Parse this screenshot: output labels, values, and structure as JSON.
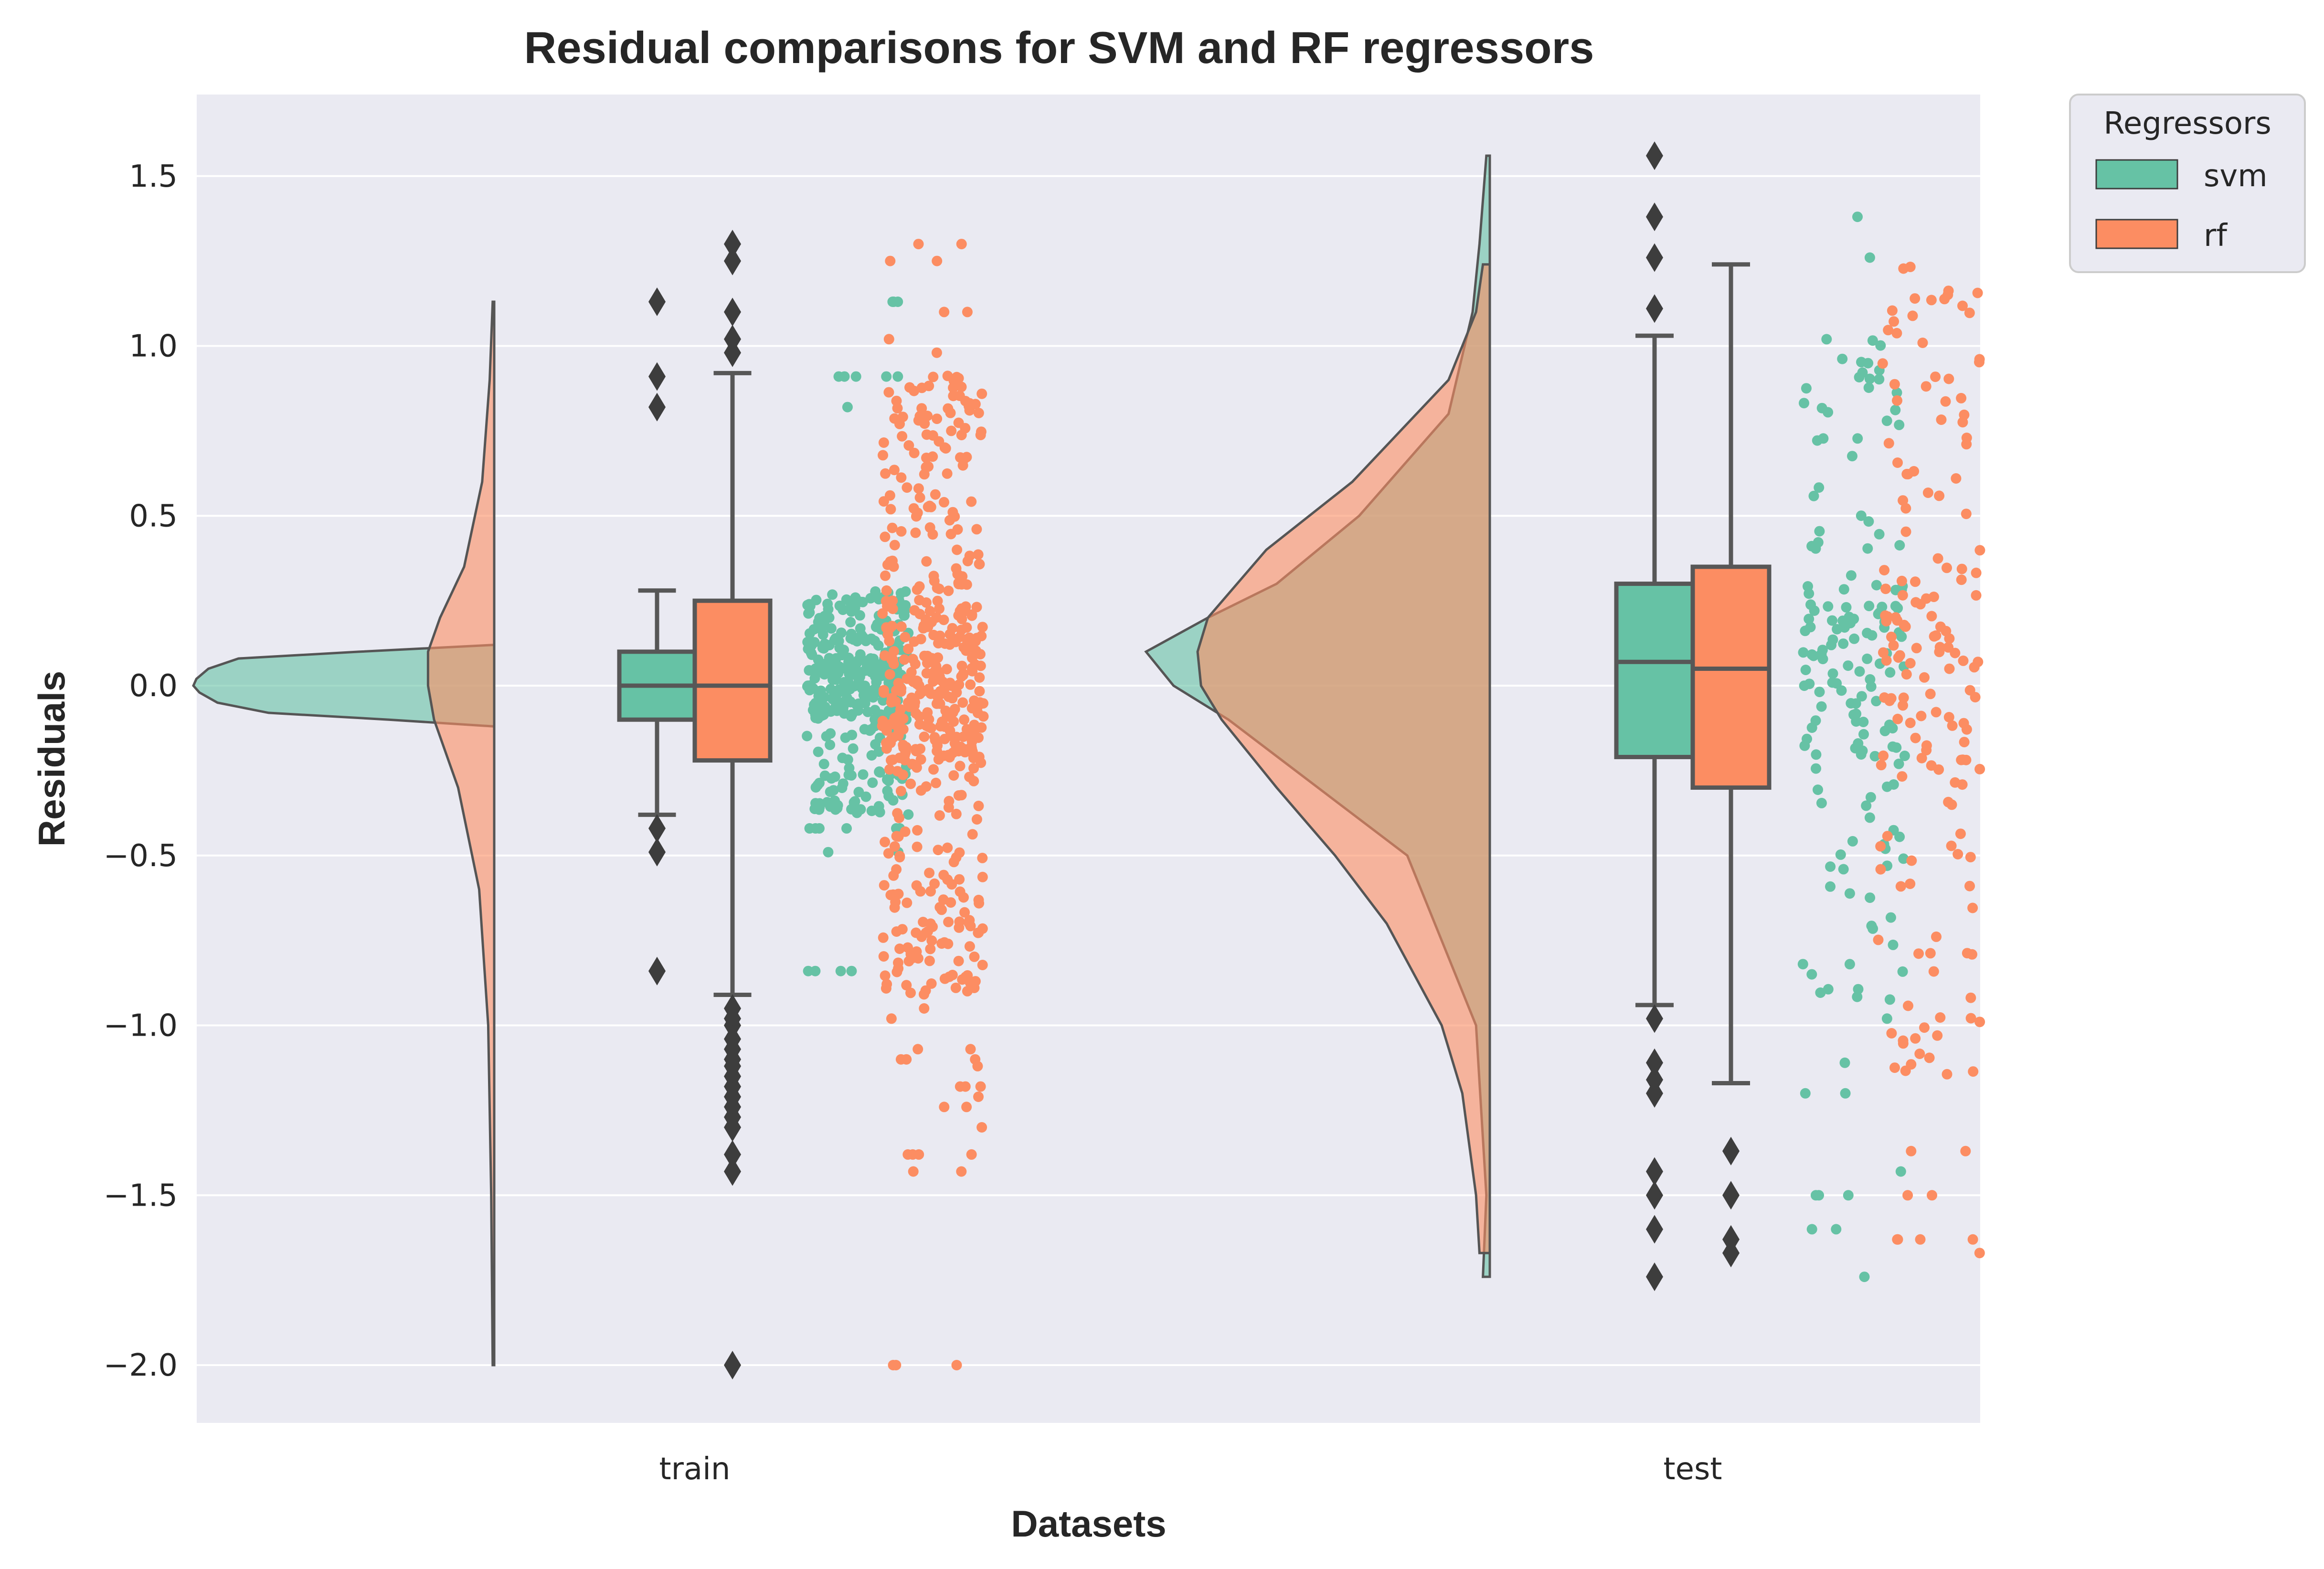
{
  "chart_data": {
    "type": "raincloud",
    "title": "Residual comparisons for SVM and RF regressors",
    "xlabel": "Datasets",
    "ylabel": "Residuals",
    "categories": [
      "train",
      "test"
    ],
    "ylim": [
      -2.17,
      1.74
    ],
    "yticks": [
      1.5,
      1.0,
      0.5,
      0.0,
      -0.5,
      -1.0,
      -1.5,
      -2.0
    ],
    "ytick_labels": [
      "1.5",
      "1.0",
      "0.5",
      "0.0",
      "−0.5",
      "−1.0",
      "−1.5",
      "−2.0"
    ],
    "grid": true,
    "background": "#eaeaf2",
    "legend": {
      "title": "Regressors",
      "placement": "outside-top-right",
      "entries": [
        "svm",
        "rf"
      ]
    },
    "series": [
      {
        "name": "svm",
        "color": "#66c2a5",
        "box": {
          "train": {
            "q1": -0.1,
            "median": 0.0,
            "q3": 0.1,
            "whisker_low": -0.38,
            "whisker_high": 0.28,
            "outliers": [
              1.13,
              0.91,
              0.82,
              -0.42,
              -0.49,
              -0.84
            ]
          },
          "test": {
            "q1": -0.21,
            "median": 0.07,
            "q3": 0.3,
            "whisker_low": -0.94,
            "whisker_high": 1.03,
            "outliers": [
              1.56,
              1.38,
              1.26,
              1.11,
              -0.98,
              -1.11,
              -1.16,
              -1.2,
              -1.43,
              -1.5,
              -1.6,
              -1.74
            ]
          }
        },
        "density": {
          "train": {
            "y": [
              -0.12,
              -0.1,
              -0.08,
              -0.05,
              -0.02,
              0.0,
              0.02,
              0.05,
              0.08,
              0.1,
              0.12
            ],
            "value": [
              0.0,
              0.35,
              0.75,
              0.92,
              0.98,
              1.0,
              0.99,
              0.95,
              0.85,
              0.45,
              0.0
            ]
          },
          "test": {
            "y": [
              -1.74,
              -1.5,
              -1.0,
              -0.5,
              -0.3,
              -0.1,
              0.0,
              0.1,
              0.2,
              0.3,
              0.5,
              0.8,
              1.1,
              1.3,
              1.56
            ],
            "value": [
              0.02,
              0.01,
              0.04,
              0.24,
              0.5,
              0.76,
              0.92,
              1.0,
              0.82,
              0.62,
              0.38,
              0.12,
              0.05,
              0.03,
              0.01
            ]
          }
        }
      },
      {
        "name": "rf",
        "color": "#fc8d62",
        "box": {
          "train": {
            "q1": -0.22,
            "median": 0.0,
            "q3": 0.25,
            "whisker_low": -0.91,
            "whisker_high": 0.92,
            "outliers": [
              1.3,
              1.25,
              1.1,
              1.02,
              0.98,
              -0.95,
              -0.98,
              -1.0,
              -1.04,
              -1.07,
              -1.1,
              -1.12,
              -1.15,
              -1.18,
              -1.21,
              -1.24,
              -1.27,
              -1.3,
              -1.38,
              -1.43,
              -2.0
            ]
          },
          "test": {
            "q1": -0.3,
            "median": 0.05,
            "q3": 0.35,
            "whisker_low": -1.17,
            "whisker_high": 1.24,
            "outliers": [
              -1.37,
              -1.5,
              -1.63,
              -1.67
            ]
          }
        },
        "density": {
          "train": {
            "y": [
              -2.0,
              -1.5,
              -1.0,
              -0.6,
              -0.3,
              -0.1,
              0.0,
              0.1,
              0.2,
              0.35,
              0.6,
              0.9,
              1.13
            ],
            "value": [
              0.005,
              0.01,
              0.02,
              0.05,
              0.12,
              0.2,
              0.22,
              0.22,
              0.18,
              0.1,
              0.04,
              0.015,
              0.005
            ]
          },
          "test": {
            "y": [
              -1.67,
              -1.5,
              -1.2,
              -1.0,
              -0.7,
              -0.5,
              -0.3,
              -0.1,
              0.0,
              0.1,
              0.2,
              0.4,
              0.6,
              0.9,
              1.1,
              1.24
            ],
            "value": [
              0.03,
              0.04,
              0.08,
              0.14,
              0.3,
              0.45,
              0.62,
              0.78,
              0.84,
              0.85,
              0.82,
              0.65,
              0.4,
              0.12,
              0.04,
              0.02
            ]
          }
        }
      }
    ]
  }
}
